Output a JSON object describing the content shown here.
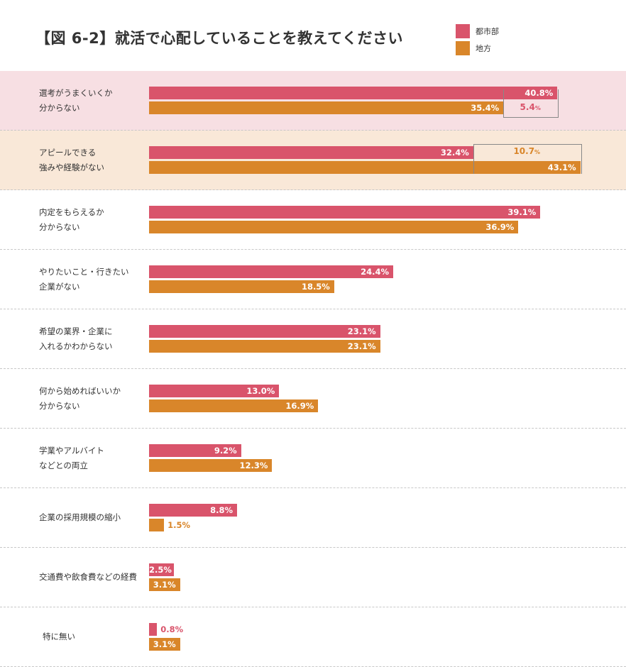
{
  "chart_data": {
    "type": "bar",
    "title": "【図 6-2】就活で心配していることを教えてください",
    "orientation": "horizontal",
    "unit": "%",
    "categories": [
      "選考がうまくいくか\n分からない",
      "アピールできる\n強みや経験がない",
      "内定をもらえるか\n分からない",
      "やりたいこと・行きたい\n企業がない",
      "希望の業界・企業に\n入れるかわからない",
      "何から始めればいいか\n分からない",
      "学業やアルバイト\nなどとの両立",
      "企業の採用規模の縮小",
      "交通費や飲食費などの経費",
      "特に無い"
    ],
    "series": [
      {
        "name": "都市部",
        "color": "#d9546b",
        "values": [
          40.8,
          32.4,
          39.1,
          24.4,
          23.1,
          13.0,
          9.2,
          8.8,
          2.5,
          0.8
        ],
        "labels": [
          "40.8%",
          "32.4%",
          "39.1%",
          "24.4%",
          "23.1%",
          "13.0%",
          "9.2%",
          "8.8%",
          "2.5%",
          "0.8%"
        ]
      },
      {
        "name": "地方",
        "color": "#d9862a",
        "values": [
          35.4,
          43.1,
          36.9,
          18.5,
          23.1,
          16.9,
          12.3,
          1.5,
          3.1,
          3.1
        ],
        "labels": [
          "35.4%",
          "43.1%",
          "36.9%",
          "18.5%",
          "23.1%",
          "16.9%",
          "12.3%",
          "1.5%",
          "3.1%",
          "3.1%"
        ]
      }
    ],
    "annotations": [
      {
        "category_index": 0,
        "text": "5.4",
        "unit": "%",
        "color": "#d9546b"
      },
      {
        "category_index": 1,
        "text": "10.7",
        "unit": "%",
        "color": "#d9862a"
      }
    ],
    "row_highlights": {
      "0": "#f7dfe3",
      "1": "#f9e8d8"
    },
    "legend": "top-right",
    "xlim": [
      0,
      50
    ]
  }
}
